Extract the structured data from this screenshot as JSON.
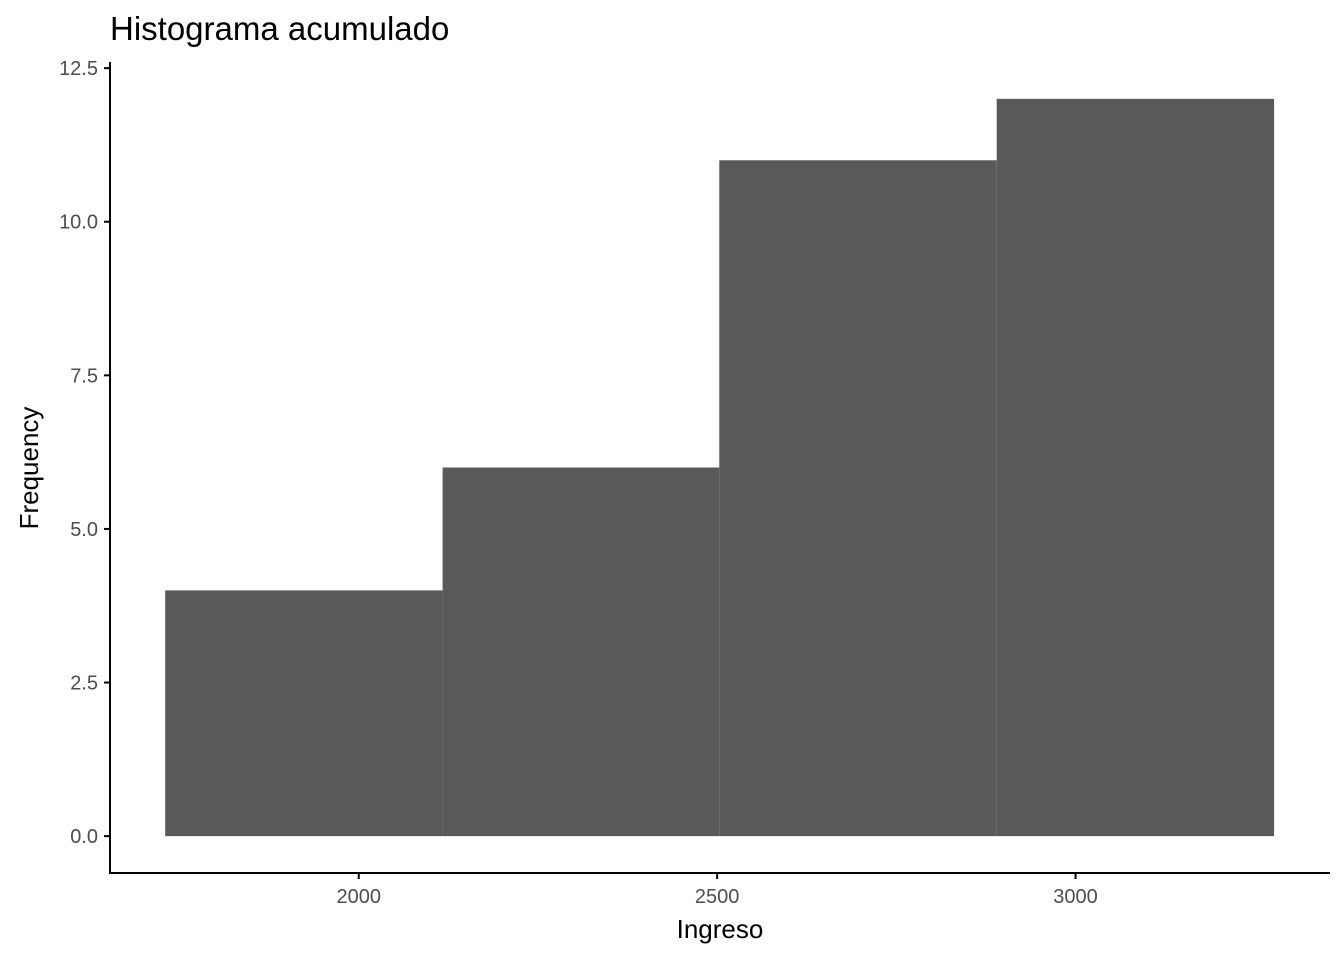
{
  "chart_data": {
    "type": "bar",
    "title": "Histograma acumulado",
    "xlabel": "Ingreso",
    "ylabel": "Frequency",
    "bins": [
      {
        "x0": 1730,
        "x1": 2117,
        "value": 4
      },
      {
        "x0": 2117,
        "x1": 2503,
        "value": 6
      },
      {
        "x0": 2503,
        "x1": 2890,
        "value": 11
      },
      {
        "x0": 2890,
        "x1": 3277,
        "value": 12
      }
    ],
    "xlim": [
      1653,
      3355
    ],
    "ylim": [
      -0.6,
      12.6
    ],
    "xticks": [
      {
        "value": 2000,
        "label": "2000"
      },
      {
        "value": 2500,
        "label": "2500"
      },
      {
        "value": 3000,
        "label": "3000"
      }
    ],
    "yticks": [
      {
        "value": 0,
        "label": "0.0"
      },
      {
        "value": 2.5,
        "label": "2.5"
      },
      {
        "value": 5,
        "label": "5.0"
      },
      {
        "value": 7.5,
        "label": "7.5"
      },
      {
        "value": 10,
        "label": "10.0"
      },
      {
        "value": 12.5,
        "label": "12.5"
      }
    ],
    "bar_color": "#595959",
    "axis_color": "#000000",
    "tick_label_color": "#4d4d4d",
    "grid": false,
    "legend": "none"
  }
}
